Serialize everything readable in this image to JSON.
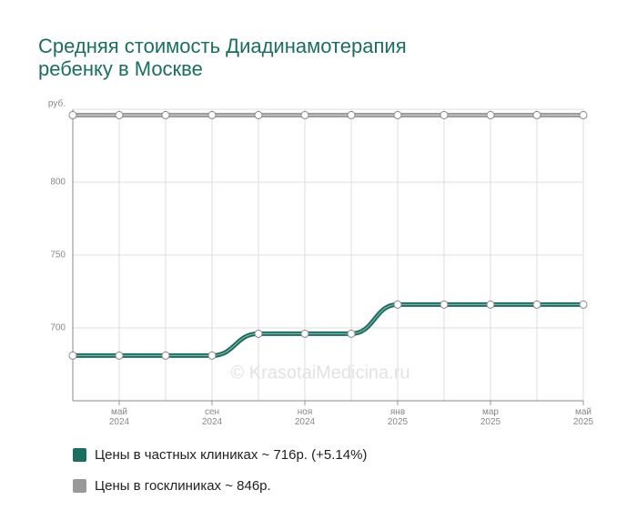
{
  "chart_data": {
    "type": "line",
    "title": [
      "Средняя стоимость Диадинамотерапия",
      "ребенку в Москве"
    ],
    "watermark": "© KrasotaiMedicina.ru",
    "categories": [
      null,
      "май 2024",
      null,
      "сен 2024",
      null,
      "ноя 2024",
      null,
      "янв 2025",
      null,
      "мар 2025",
      null,
      "май 2025"
    ],
    "series": [
      {
        "name": "Цены в частных клиниках ~ 716р. (+5.14%)",
        "color": "#1b6e60",
        "values": [
          681,
          681,
          681,
          681,
          696,
          696,
          696,
          716,
          716,
          716,
          716,
          716
        ]
      },
      {
        "name": "Цены в госклиниках ~ 846р.",
        "color": "#999999",
        "values": [
          846,
          846,
          846,
          846,
          846,
          846,
          846,
          846,
          846,
          846,
          846,
          846
        ]
      }
    ],
    "ylim": [
      650,
      850
    ],
    "yticks": [
      700,
      750,
      800,
      {
        "value": 850,
        "label": "руб."
      }
    ],
    "grid": true
  }
}
